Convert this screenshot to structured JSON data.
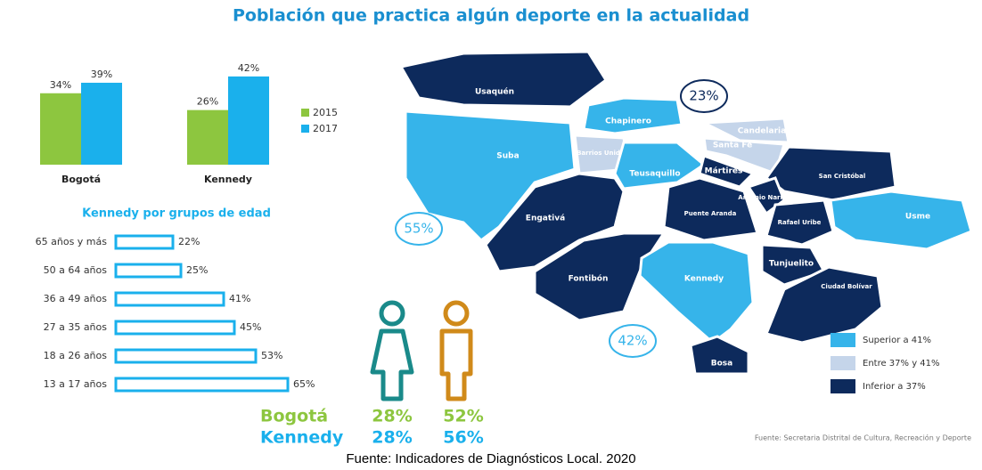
{
  "title": "Población que practica algún deporte en la actualidad",
  "chart_data": [
    {
      "type": "bar",
      "categories": [
        "Bogotá",
        "Kennedy"
      ],
      "series": [
        {
          "name": "2015",
          "color": "#8dc63f",
          "values": [
            34,
            26
          ],
          "value_labels": [
            "34%",
            "26%"
          ]
        },
        {
          "name": "2017",
          "color": "#1ab0ec",
          "values": [
            39,
            42
          ],
          "value_labels": [
            "39%",
            "42%"
          ]
        }
      ]
    },
    {
      "type": "hbar",
      "title": "Kennedy por grupos de edad",
      "color": "#1ab0ec",
      "categories": [
        "65 años y más",
        "50 a 64 años",
        "36 a 49 años",
        "27 a 35 años",
        "18 a 26 años",
        "13 a 17 años"
      ],
      "values": [
        22,
        25,
        41,
        45,
        53,
        65
      ],
      "value_labels": [
        "22%",
        "25%",
        "41%",
        "45%",
        "53%",
        "65%"
      ]
    }
  ],
  "gender": {
    "rows": [
      {
        "label": "Bogotá",
        "color": "#8dc63f",
        "values": [
          "28%",
          "52%"
        ]
      },
      {
        "label": "Kennedy",
        "color": "#1ab0ec",
        "values": [
          "28%",
          "56%"
        ]
      }
    ]
  },
  "map": {
    "districts": [
      {
        "name": "Usaquén",
        "color": "#0d2a5c"
      },
      {
        "name": "Chapinero",
        "color": "#36b4ea"
      },
      {
        "name": "Suba",
        "color": "#36b4ea"
      },
      {
        "name": "Barrios Unidos",
        "color": "#c5d5ea"
      },
      {
        "name": "Teusaquillo",
        "color": "#36b4ea"
      },
      {
        "name": "Candelaria",
        "color": "#c5d5ea"
      },
      {
        "name": "Santa Fe",
        "color": "#c5d5ea"
      },
      {
        "name": "Mártires",
        "color": "#0d2a5c"
      },
      {
        "name": "San Cristóbal",
        "color": "#0d2a5c"
      },
      {
        "name": "Engativá",
        "color": "#0d2a5c"
      },
      {
        "name": "Puente Aranda",
        "color": "#0d2a5c"
      },
      {
        "name": "Antonio Nariño",
        "color": "#0d2a5c"
      },
      {
        "name": "Rafael Uribe",
        "color": "#0d2a5c"
      },
      {
        "name": "Usme",
        "color": "#36b4ea"
      },
      {
        "name": "Fontibón",
        "color": "#0d2a5c"
      },
      {
        "name": "Kennedy",
        "color": "#36b4ea"
      },
      {
        "name": "Tunjuelito",
        "color": "#0d2a5c"
      },
      {
        "name": "Ciudad Bolívar",
        "color": "#0d2a5c"
      },
      {
        "name": "Bosa",
        "color": "#0d2a5c"
      }
    ],
    "callouts": [
      {
        "label": "23%",
        "color": "#0d2a5c"
      },
      {
        "label": "55%",
        "color": "#36b4ea"
      },
      {
        "label": "42%",
        "color": "#36b4ea"
      }
    ],
    "legend": [
      {
        "label": "Superior a 41%",
        "color": "#36b4ea"
      },
      {
        "label": "Entre 37% y 41%",
        "color": "#c5d5ea"
      },
      {
        "label": "Inferior a 37%",
        "color": "#0d2a5c"
      }
    ],
    "source": "Fuente: Secretaria Distrital de Cultura, Recreación y Deporte"
  },
  "caption": "Fuente: Indicadores de Diagnósticos Local. 2020"
}
